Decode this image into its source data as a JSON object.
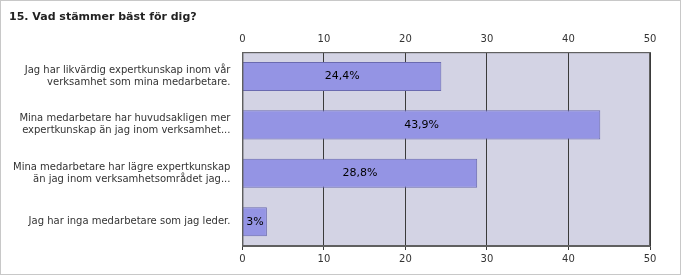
{
  "chart_data": {
    "type": "bar",
    "title": "15. Vad stämmer bäst för dig?",
    "orientation": "horizontal",
    "categories": [
      "Jag har likvärdig expertkunskap inom vår verksamhet som mina medarbetare.",
      "Mina medarbetare har huvudsakligen mer expertkunskap än jag inom verksamhet...",
      "Mina medarbetare har lägre expertkunskap än jag inom verksamhetsområdet jag...",
      "Jag har inga medarbetare som jag leder."
    ],
    "values": [
      24.4,
      43.9,
      28.8,
      3
    ],
    "value_labels": [
      "24,4%",
      "43,9%",
      "28,8%",
      "3%"
    ],
    "data_labels": true,
    "color": "#9494e4",
    "xlim": [
      0,
      50
    ],
    "xticks": [
      0,
      10,
      20,
      30,
      40,
      50
    ],
    "grid": true
  }
}
